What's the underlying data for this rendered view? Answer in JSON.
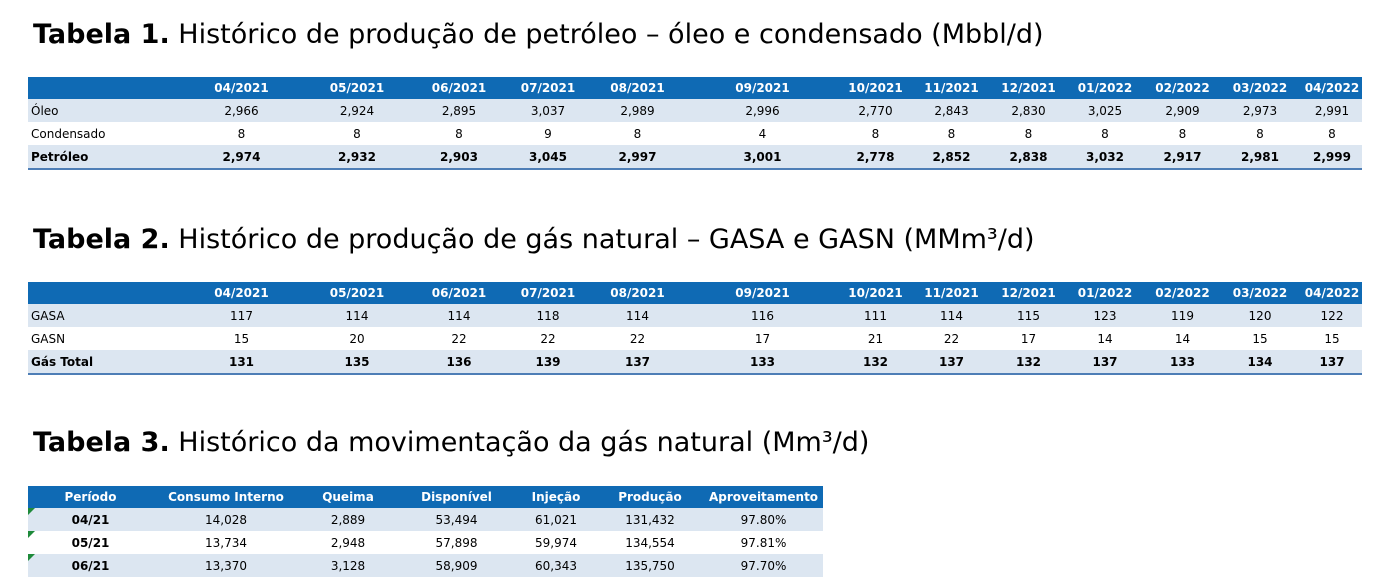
{
  "months": [
    "04/2021",
    "05/2021",
    "06/2021",
    "07/2021",
    "08/2021",
    "09/2021",
    "10/2021",
    "11/2021",
    "12/2021",
    "01/2022",
    "02/2022",
    "03/2022",
    "04/2022"
  ],
  "table1": {
    "title_bold": "Tabela 1.",
    "title_rest": " Histórico de produção de petróleo – óleo e condensado (Mbbl/d)",
    "rows": [
      {
        "label": "Óleo",
        "values": [
          "2,966",
          "2,924",
          "2,895",
          "3,037",
          "2,989",
          "2,996",
          "2,770",
          "2,843",
          "2,830",
          "3,025",
          "2,909",
          "2,973",
          "2,991"
        ]
      },
      {
        "label": "Condensado",
        "values": [
          "8",
          "8",
          "8",
          "9",
          "8",
          "4",
          "8",
          "8",
          "8",
          "8",
          "8",
          "8",
          "8"
        ]
      },
      {
        "label": "Petróleo",
        "values": [
          "2,974",
          "2,932",
          "2,903",
          "3,045",
          "2,997",
          "3,001",
          "2,778",
          "2,852",
          "2,838",
          "3,032",
          "2,917",
          "2,981",
          "2,999"
        ]
      }
    ]
  },
  "table2": {
    "title_bold": "Tabela 2.",
    "title_rest": " Histórico de produção de gás natural – GASA e GASN (MMm³/d)",
    "rows": [
      {
        "label": "GASA",
        "values": [
          "117",
          "114",
          "114",
          "118",
          "114",
          "116",
          "111",
          "114",
          "115",
          "123",
          "119",
          "120",
          "122"
        ]
      },
      {
        "label": "GASN",
        "values": [
          "15",
          "20",
          "22",
          "22",
          "22",
          "17",
          "21",
          "22",
          "17",
          "14",
          "14",
          "15",
          "15"
        ]
      },
      {
        "label": "Gás Total",
        "values": [
          "131",
          "135",
          "136",
          "139",
          "137",
          "133",
          "132",
          "137",
          "132",
          "137",
          "133",
          "134",
          "137"
        ]
      }
    ]
  },
  "table3": {
    "title_bold": "Tabela 3.",
    "title_rest": " Histórico da movimentação da gás natural (Mm³/d)",
    "headers": [
      "Período",
      "Consumo Interno",
      "Queima",
      "Disponível",
      "Injeção",
      "Produção",
      "Aproveitamento"
    ],
    "rows": [
      [
        "04/21",
        "14,028",
        "2,889",
        "53,494",
        "61,021",
        "131,432",
        "97.80%"
      ],
      [
        "05/21",
        "13,734",
        "2,948",
        "57,898",
        "59,974",
        "134,554",
        "97.81%"
      ],
      [
        "06/21",
        "13,370",
        "3,128",
        "58,909",
        "60,343",
        "135,750",
        "97.70%"
      ]
    ]
  },
  "colors": {
    "header_bg": "#0f6ab4",
    "alt_row": "#dce6f1",
    "rule": "#4e7eb6",
    "marker": "#1e8a3a"
  }
}
